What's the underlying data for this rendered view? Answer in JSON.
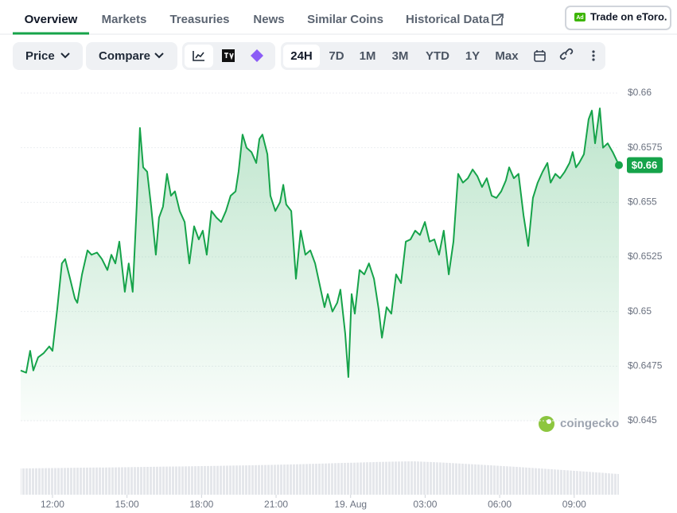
{
  "tabs": [
    "Overview",
    "Markets",
    "Treasuries",
    "News",
    "Similar Coins",
    "Historical Data"
  ],
  "ad": {
    "badge": "Ad",
    "label": "Trade on eToro."
  },
  "controls": {
    "dropdowns": [
      "Price",
      "Compare"
    ],
    "ranges": [
      "24H",
      "7D",
      "1M",
      "3M",
      "YTD",
      "1Y",
      "Max"
    ]
  },
  "watermark": "coingecko",
  "chart_data": {
    "type": "line",
    "color": "#16a34a",
    "current_price_label": "$0.66",
    "x": [
      10.72,
      10.94,
      11.1,
      11.23,
      11.42,
      11.65,
      11.87,
      12.0,
      12.19,
      12.38,
      12.51,
      12.71,
      12.9,
      13.0,
      13.19,
      13.41,
      13.57,
      13.79,
      13.99,
      14.21,
      14.37,
      14.53,
      14.69,
      14.91,
      15.07,
      15.23,
      15.39,
      15.52,
      15.65,
      15.81,
      15.97,
      16.16,
      16.29,
      16.45,
      16.61,
      16.77,
      16.93,
      17.12,
      17.32,
      17.51,
      17.7,
      17.89,
      18.05,
      18.21,
      18.4,
      18.6,
      18.79,
      18.98,
      19.17,
      19.37,
      19.49,
      19.65,
      19.81,
      20.01,
      20.2,
      20.33,
      20.45,
      20.65,
      20.77,
      20.97,
      21.16,
      21.29,
      21.41,
      21.61,
      21.8,
      21.99,
      22.18,
      22.38,
      22.57,
      22.76,
      22.95,
      23.08,
      23.27,
      23.46,
      23.59,
      23.78,
      23.91,
      24.04,
      24.17,
      24.36,
      24.55,
      24.74,
      24.94,
      25.13,
      25.26,
      25.45,
      25.64,
      25.83,
      26.03,
      26.22,
      26.41,
      26.6,
      26.79,
      26.99,
      27.18,
      27.37,
      27.56,
      27.75,
      27.95,
      28.14,
      28.33,
      28.52,
      28.72,
      28.91,
      29.1,
      29.29,
      29.48,
      29.68,
      29.87,
      30.06,
      30.25,
      30.38,
      30.57,
      30.76,
      30.96,
      31.15,
      31.34,
      31.53,
      31.73,
      31.92,
      32.05,
      32.24,
      32.43,
      32.62,
      32.81,
      32.94,
      33.07,
      33.2,
      33.39,
      33.58,
      33.71,
      33.84,
      34.03,
      34.16,
      34.35,
      34.55,
      34.8
    ],
    "values": [
      0.6473,
      0.6472,
      0.6482,
      0.6473,
      0.6479,
      0.6481,
      0.6484,
      0.6482,
      0.6501,
      0.6522,
      0.6524,
      0.6515,
      0.6506,
      0.6504,
      0.6517,
      0.6528,
      0.6526,
      0.6527,
      0.6524,
      0.6519,
      0.6526,
      0.6522,
      0.6532,
      0.6509,
      0.6522,
      0.6509,
      0.6548,
      0.6584,
      0.6566,
      0.6564,
      0.6548,
      0.6526,
      0.6543,
      0.6548,
      0.6563,
      0.6553,
      0.6555,
      0.6546,
      0.6541,
      0.6522,
      0.6539,
      0.6533,
      0.6537,
      0.6526,
      0.6546,
      0.6543,
      0.6541,
      0.6546,
      0.6553,
      0.6555,
      0.6564,
      0.6581,
      0.6575,
      0.6573,
      0.6568,
      0.6579,
      0.6581,
      0.6572,
      0.6553,
      0.6546,
      0.655,
      0.6558,
      0.6549,
      0.6546,
      0.6515,
      0.6537,
      0.6526,
      0.6528,
      0.6522,
      0.6512,
      0.6502,
      0.6508,
      0.65,
      0.6504,
      0.651,
      0.649,
      0.647,
      0.6508,
      0.6499,
      0.6519,
      0.6517,
      0.6522,
      0.6515,
      0.6501,
      0.6488,
      0.6502,
      0.6499,
      0.6517,
      0.6513,
      0.6532,
      0.6533,
      0.6537,
      0.6535,
      0.6541,
      0.6532,
      0.6533,
      0.6526,
      0.6537,
      0.6517,
      0.6532,
      0.6563,
      0.6559,
      0.6561,
      0.6565,
      0.6562,
      0.6557,
      0.6561,
      0.6553,
      0.6552,
      0.6555,
      0.656,
      0.6566,
      0.6561,
      0.6563,
      0.6544,
      0.653,
      0.6552,
      0.6559,
      0.6564,
      0.6568,
      0.6559,
      0.6563,
      0.6561,
      0.6564,
      0.6568,
      0.6573,
      0.6566,
      0.6568,
      0.6572,
      0.6588,
      0.6592,
      0.6577,
      0.6593,
      0.6575,
      0.6577,
      0.6573,
      0.6567
    ],
    "xlim": [
      10.72,
      34.8
    ],
    "ylim": [
      0.645,
      0.66
    ],
    "xticks": [
      {
        "value": 12,
        "label": "12:00"
      },
      {
        "value": 15,
        "label": "15:00"
      },
      {
        "value": 18,
        "label": "18:00"
      },
      {
        "value": 21,
        "label": "21:00"
      },
      {
        "value": 24,
        "label": "19. Aug"
      },
      {
        "value": 27,
        "label": "03:00"
      },
      {
        "value": 30,
        "label": "06:00"
      },
      {
        "value": 33,
        "label": "09:00"
      }
    ],
    "yticks": [
      {
        "value": 0.645,
        "label": "$0.645"
      },
      {
        "value": 0.6475,
        "label": "$0.6475"
      },
      {
        "value": 0.65,
        "label": "$0.65"
      },
      {
        "value": 0.6525,
        "label": "$0.6525"
      },
      {
        "value": 0.655,
        "label": "$0.655"
      },
      {
        "value": 0.6575,
        "label": "$0.6575"
      },
      {
        "value": 0.66,
        "label": "$0.66"
      }
    ],
    "grid": true
  }
}
